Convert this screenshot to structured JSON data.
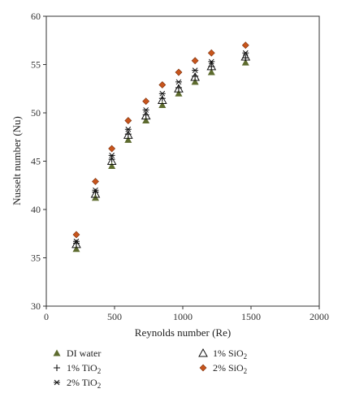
{
  "chart_data": {
    "type": "scatter",
    "title": "",
    "xlabel": "Reynolds number (Re)",
    "ylabel": "Nusselt number (Nu)",
    "xlim": [
      0,
      2000
    ],
    "ylim": [
      30,
      60
    ],
    "xticks": [
      "0",
      "500",
      "1000",
      "1500",
      "2000"
    ],
    "yticks": [
      "30",
      "35",
      "40",
      "45",
      "50",
      "55",
      "60"
    ],
    "grid": false,
    "legend_placement": "bottom",
    "series": [
      {
        "name": "DI water",
        "marker": "triangle-filled",
        "color": "#5d6b2e",
        "x": [
          220,
          360,
          480,
          600,
          730,
          850,
          970,
          1090,
          1210,
          1460
        ],
        "y": [
          35.9,
          41.2,
          44.5,
          47.2,
          49.2,
          50.8,
          52.0,
          53.2,
          54.2,
          55.2
        ]
      },
      {
        "name": "1% TiO2",
        "marker": "plus",
        "color": "#111111",
        "x": [
          220,
          360,
          480,
          600,
          730,
          850,
          970,
          1090,
          1210,
          1460
        ],
        "y": [
          36.5,
          41.8,
          45.2,
          47.8,
          49.8,
          51.5,
          52.6,
          53.8,
          54.8,
          55.7
        ]
      },
      {
        "name": "2% TiO2",
        "marker": "asterisk",
        "color": "#111111",
        "x": [
          220,
          360,
          480,
          600,
          730,
          850,
          970,
          1090,
          1210,
          1460
        ],
        "y": [
          36.7,
          42.0,
          45.6,
          48.3,
          50.3,
          52.0,
          53.2,
          54.4,
          55.3,
          56.2
        ]
      },
      {
        "name": "1% SiO2",
        "marker": "triangle-open",
        "color": "#111111",
        "x": [
          220,
          360,
          480,
          600,
          730,
          850,
          970,
          1090,
          1210,
          1460
        ],
        "y": [
          36.4,
          41.6,
          45.0,
          47.7,
          49.7,
          51.3,
          52.5,
          53.7,
          54.8,
          55.8
        ]
      },
      {
        "name": "2% SiO2",
        "marker": "diamond-filled",
        "color": "#c8551c",
        "x": [
          220,
          360,
          480,
          600,
          730,
          850,
          970,
          1090,
          1210,
          1460
        ],
        "y": [
          37.4,
          42.9,
          46.3,
          49.2,
          51.2,
          52.9,
          54.2,
          55.4,
          56.2,
          57.0
        ]
      }
    ],
    "legend": [
      {
        "parts": [
          [
            "DI water",
            false
          ]
        ]
      },
      {
        "parts": [
          [
            "1% SiO",
            false
          ],
          [
            "2",
            true
          ]
        ]
      },
      {
        "parts": [
          [
            "1% TiO",
            false
          ],
          [
            "2",
            true
          ]
        ]
      },
      {
        "parts": [
          [
            "2% SiO",
            false
          ],
          [
            "2",
            true
          ]
        ]
      },
      {
        "parts": [
          [
            "2% TiO",
            false
          ],
          [
            "2",
            true
          ]
        ]
      }
    ]
  }
}
